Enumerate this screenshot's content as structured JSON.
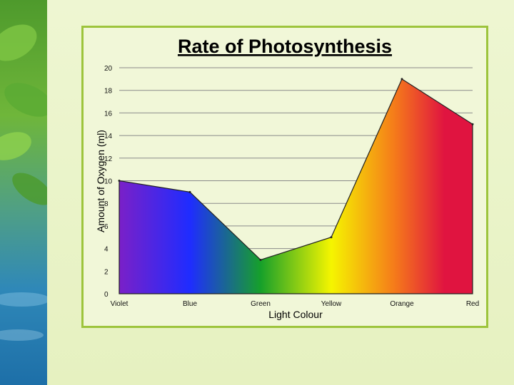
{
  "chart_data": {
    "type": "area",
    "title": "Rate of Photosynthesis",
    "xlabel": "Light Colour",
    "ylabel": "Amount of Oxygen (ml)",
    "categories": [
      "Violet",
      "Blue",
      "Green",
      "Yellow",
      "Orange",
      "Red"
    ],
    "values": [
      10,
      9,
      3,
      5,
      19,
      15
    ],
    "ylim": [
      0,
      20
    ],
    "yticks": [
      0,
      2,
      4,
      6,
      8,
      10,
      12,
      14,
      16,
      18,
      20
    ],
    "grid": true,
    "legend": "none",
    "fill": "spectrum gradient violet-blue-green-yellow-orange-red"
  },
  "colors": {
    "violet": "#7a20c8",
    "blue": "#1f2cff",
    "green": "#16a02a",
    "yellow": "#f5f500",
    "orange": "#f57a1a",
    "red": "#e01440",
    "frame": "#9dc43c",
    "background": "#e9f3c4"
  }
}
